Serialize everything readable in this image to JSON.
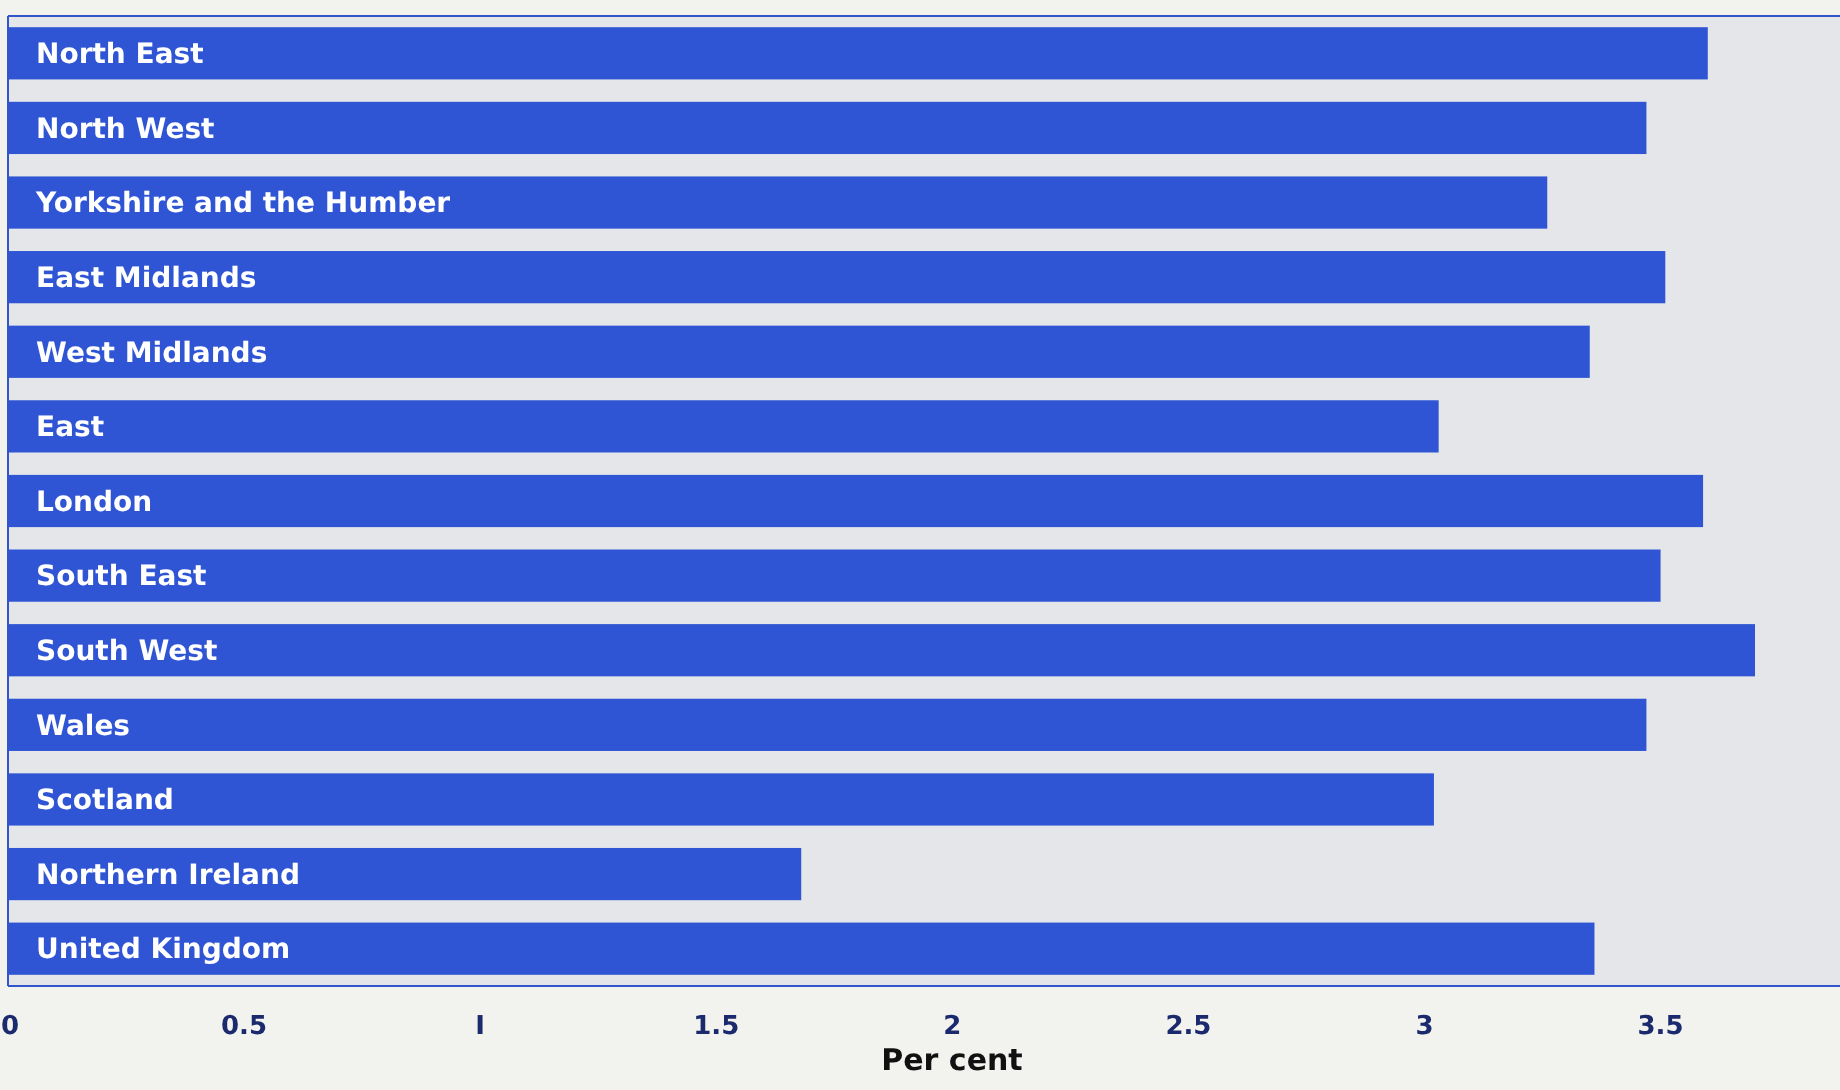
{
  "chart_data": {
    "type": "bar",
    "orientation": "horizontal",
    "xlabel": "Per cent",
    "categories": [
      "North East",
      "North West",
      "Yorkshire and the Humber",
      "East Midlands",
      "West Midlands",
      "East",
      "London",
      "South East",
      "South West",
      "Wales",
      "Scotland",
      "Northern Ireland",
      "United Kingdom"
    ],
    "values": [
      3.6,
      3.47,
      3.26,
      3.51,
      3.35,
      3.03,
      3.59,
      3.5,
      3.7,
      3.47,
      3.02,
      1.68,
      3.36
    ],
    "color": "#2f55d4",
    "xlim": [
      0,
      3.88
    ],
    "xticks": [
      0,
      0.5,
      {
        "value": 1,
        "label": "I"
      },
      1.5,
      2,
      2.5,
      3,
      3.5
    ],
    "grid": false
  }
}
